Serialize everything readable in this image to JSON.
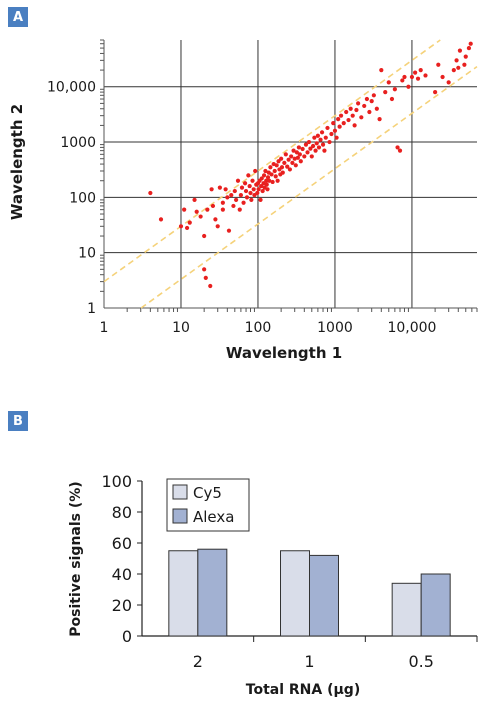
{
  "panel_a": {
    "label": "A"
  },
  "panel_b": {
    "label": "B"
  },
  "colors": {
    "badge": "#4a7fc1",
    "points": "#e8201f",
    "guide": "#f5d27a",
    "grid": "#333333",
    "cy5": "#d9dde9",
    "alexa": "#a2b1d2"
  },
  "chart_data": [
    {
      "type": "scatter",
      "xlabel": "Wavelength 1",
      "ylabel": "Wavelength 2",
      "x_scale": "log",
      "y_scale": "log",
      "xlim": [
        1,
        70000
      ],
      "ylim": [
        1,
        70000
      ],
      "x_ticks": [
        1,
        10,
        100,
        1000,
        10000
      ],
      "x_tick_labels": [
        "1",
        "10",
        "100",
        "1000",
        "10,000"
      ],
      "y_ticks": [
        1,
        10,
        100,
        1000,
        10000
      ],
      "y_tick_labels": [
        "1",
        "10",
        "100",
        "1000",
        "10,000"
      ],
      "grid": true,
      "guide_lines": [
        {
          "style": "dashed",
          "ratio": 3
        },
        {
          "style": "dashed",
          "ratio": 0.33
        }
      ],
      "points": [
        [
          4,
          120
        ],
        [
          5.5,
          40
        ],
        [
          10,
          30
        ],
        [
          11,
          60
        ],
        [
          12,
          28
        ],
        [
          13,
          35
        ],
        [
          15,
          90
        ],
        [
          16,
          55
        ],
        [
          18,
          45
        ],
        [
          20,
          20
        ],
        [
          20,
          5
        ],
        [
          21,
          3.5
        ],
        [
          22,
          60
        ],
        [
          24,
          2.5
        ],
        [
          25,
          140
        ],
        [
          26,
          70
        ],
        [
          28,
          40
        ],
        [
          30,
          30
        ],
        [
          32,
          150
        ],
        [
          35,
          60
        ],
        [
          35,
          80
        ],
        [
          38,
          140
        ],
        [
          40,
          100
        ],
        [
          42,
          25
        ],
        [
          45,
          110
        ],
        [
          48,
          70
        ],
        [
          50,
          130
        ],
        [
          52,
          90
        ],
        [
          55,
          200
        ],
        [
          58,
          60
        ],
        [
          60,
          110
        ],
        [
          62,
          150
        ],
        [
          65,
          80
        ],
        [
          68,
          180
        ],
        [
          70,
          130
        ],
        [
          72,
          100
        ],
        [
          75,
          250
        ],
        [
          78,
          160
        ],
        [
          80,
          120
        ],
        [
          82,
          90
        ],
        [
          85,
          200
        ],
        [
          88,
          140
        ],
        [
          90,
          110
        ],
        [
          92,
          300
        ],
        [
          95,
          170
        ],
        [
          98,
          120
        ],
        [
          100,
          180
        ],
        [
          102,
          140
        ],
        [
          105,
          200
        ],
        [
          108,
          90
        ],
        [
          110,
          160
        ],
        [
          112,
          220
        ],
        [
          115,
          130
        ],
        [
          118,
          180
        ],
        [
          120,
          250
        ],
        [
          122,
          150
        ],
        [
          125,
          300
        ],
        [
          128,
          200
        ],
        [
          130,
          170
        ],
        [
          133,
          140
        ],
        [
          135,
          230
        ],
        [
          138,
          280
        ],
        [
          140,
          200
        ],
        [
          145,
          350
        ],
        [
          150,
          260
        ],
        [
          155,
          190
        ],
        [
          160,
          400
        ],
        [
          165,
          300
        ],
        [
          170,
          240
        ],
        [
          175,
          380
        ],
        [
          180,
          200
        ],
        [
          185,
          450
        ],
        [
          190,
          320
        ],
        [
          195,
          260
        ],
        [
          200,
          500
        ],
        [
          205,
          350
        ],
        [
          210,
          280
        ],
        [
          220,
          420
        ],
        [
          230,
          600
        ],
        [
          240,
          360
        ],
        [
          250,
          480
        ],
        [
          260,
          320
        ],
        [
          270,
          550
        ],
        [
          280,
          420
        ],
        [
          290,
          700
        ],
        [
          300,
          500
        ],
        [
          310,
          380
        ],
        [
          320,
          650
        ],
        [
          330,
          520
        ],
        [
          340,
          800
        ],
        [
          350,
          600
        ],
        [
          360,
          450
        ],
        [
          380,
          750
        ],
        [
          400,
          550
        ],
        [
          420,
          900
        ],
        [
          440,
          650
        ],
        [
          460,
          1000
        ],
        [
          480,
          760
        ],
        [
          500,
          550
        ],
        [
          520,
          850
        ],
        [
          540,
          1200
        ],
        [
          560,
          700
        ],
        [
          580,
          950
        ],
        [
          600,
          1300
        ],
        [
          620,
          800
        ],
        [
          650,
          1100
        ],
        [
          680,
          1500
        ],
        [
          700,
          900
        ],
        [
          730,
          700
        ],
        [
          760,
          1200
        ],
        [
          800,
          1800
        ],
        [
          850,
          1000
        ],
        [
          900,
          1400
        ],
        [
          950,
          2200
        ],
        [
          1000,
          1600
        ],
        [
          1050,
          1200
        ],
        [
          1100,
          2600
        ],
        [
          1150,
          1900
        ],
        [
          1200,
          3000
        ],
        [
          1300,
          2200
        ],
        [
          1400,
          3500
        ],
        [
          1500,
          2500
        ],
        [
          1600,
          4000
        ],
        [
          1700,
          3000
        ],
        [
          1800,
          2000
        ],
        [
          1900,
          3800
        ],
        [
          2000,
          5000
        ],
        [
          2200,
          2800
        ],
        [
          2400,
          4500
        ],
        [
          2600,
          6000
        ],
        [
          2800,
          3500
        ],
        [
          3000,
          5500
        ],
        [
          3200,
          7000
        ],
        [
          3500,
          4000
        ],
        [
          3800,
          2600
        ],
        [
          4000,
          20000
        ],
        [
          4500,
          8000
        ],
        [
          5000,
          12000
        ],
        [
          5500,
          6000
        ],
        [
          6000,
          9000
        ],
        [
          6500,
          800
        ],
        [
          7000,
          700
        ],
        [
          7500,
          13000
        ],
        [
          8000,
          15000
        ],
        [
          9000,
          10000
        ],
        [
          10000,
          15000
        ],
        [
          11000,
          18000
        ],
        [
          12000,
          14000
        ],
        [
          13000,
          20000
        ],
        [
          15000,
          16000
        ],
        [
          20000,
          8000
        ],
        [
          22000,
          25000
        ],
        [
          25000,
          15000
        ],
        [
          30000,
          12000
        ],
        [
          35000,
          20000
        ],
        [
          38000,
          30000
        ],
        [
          40000,
          22000
        ],
        [
          42000,
          45000
        ],
        [
          48000,
          25000
        ],
        [
          50000,
          35000
        ],
        [
          55000,
          50000
        ],
        [
          58000,
          60000
        ]
      ]
    },
    {
      "type": "bar",
      "xlabel": "Total RNA (µg)",
      "ylabel": "Positive signals (%)",
      "categories": [
        "2",
        "1",
        "0.5"
      ],
      "ylim": [
        0,
        100
      ],
      "y_ticks": [
        0,
        20,
        40,
        60,
        80,
        100
      ],
      "grid": false,
      "legend_position": "top-left",
      "series": [
        {
          "name": "Cy5",
          "values": [
            55,
            55,
            34
          ]
        },
        {
          "name": "Alexa",
          "values": [
            56,
            52,
            40
          ]
        }
      ]
    }
  ]
}
